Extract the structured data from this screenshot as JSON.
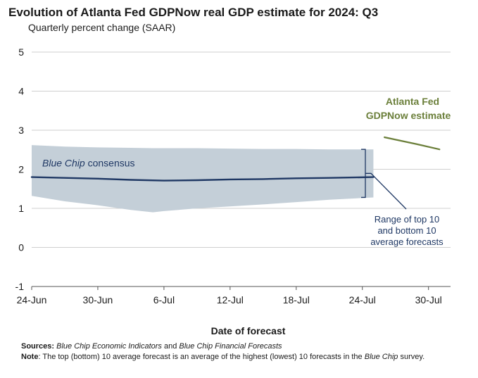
{
  "header": {
    "title": "Evolution of Atlanta Fed GDPNow real GDP estimate for 2024: Q3",
    "subtitle": "Quarterly percent change (SAAR)"
  },
  "chart_data": {
    "type": "line",
    "title": "Evolution of Atlanta Fed GDPNow real GDP estimate for 2024: Q3",
    "subtitle": "Quarterly percent change (SAAR)",
    "xlabel": "Date of forecast",
    "ylabel": "",
    "ylim": [
      -1,
      5
    ],
    "yticks": [
      "-1",
      "0",
      "1",
      "2",
      "3",
      "4",
      "5"
    ],
    "xticks": [
      "24-Jun",
      "30-Jun",
      "6-Jul",
      "12-Jul",
      "18-Jul",
      "24-Jul",
      "30-Jul"
    ],
    "x_dates": [
      "2024-06-24",
      "2024-06-30",
      "2024-07-06",
      "2024-07-12",
      "2024-07-18",
      "2024-07-24",
      "2024-07-30"
    ],
    "xlim": [
      "2024-06-24",
      "2024-08-01"
    ],
    "grid": "horizontal",
    "series": [
      {
        "name": "Blue Chip consensus",
        "color": "#1f3864",
        "x": [
          "2024-06-24",
          "2024-06-27",
          "2024-06-30",
          "2024-07-03",
          "2024-07-06",
          "2024-07-09",
          "2024-07-12",
          "2024-07-15",
          "2024-07-18",
          "2024-07-21",
          "2024-07-25"
        ],
        "y": [
          1.8,
          1.78,
          1.76,
          1.73,
          1.71,
          1.72,
          1.74,
          1.75,
          1.77,
          1.78,
          1.8
        ]
      },
      {
        "name": "Atlanta Fed GDPNow estimate",
        "color": "#6b7f3a",
        "x": [
          "2024-07-26",
          "2024-07-29",
          "2024-07-31"
        ],
        "y": [
          2.82,
          2.64,
          2.51
        ]
      }
    ],
    "band": {
      "name": "Range of top 10 and bottom 10 average forecasts",
      "color": "#c4cfd8",
      "x": [
        "2024-06-24",
        "2024-06-27",
        "2024-06-30",
        "2024-07-03",
        "2024-07-05",
        "2024-07-06",
        "2024-07-09",
        "2024-07-12",
        "2024-07-15",
        "2024-07-18",
        "2024-07-21",
        "2024-07-25"
      ],
      "upper": [
        2.62,
        2.58,
        2.56,
        2.55,
        2.54,
        2.54,
        2.54,
        2.53,
        2.52,
        2.52,
        2.51,
        2.51
      ],
      "lower": [
        1.32,
        1.18,
        1.08,
        0.96,
        0.9,
        0.93,
        1.0,
        1.05,
        1.1,
        1.16,
        1.22,
        1.28
      ]
    },
    "annotations": {
      "consensus_label": "Blue Chip consensus",
      "consensus_label_italic": "Blue Chip",
      "consensus_label_rest": " consensus",
      "gdpnow_label_line1": "Atlanta Fed",
      "gdpnow_label_line2": "GDPNow estimate",
      "range_label_line1": "Range of top 10",
      "range_label_line2": "and bottom 10",
      "range_label_line3": "average forecasts"
    }
  },
  "footer": {
    "sources_label": "Sources:",
    "sources_italic1": "Blue Chip Economic Indicators",
    "sources_and": " and ",
    "sources_italic2": "Blue Chip Financial Forecasts",
    "note_label": "Note",
    "note_text": ": The top (bottom) 10 average forecast is an average of the highest (lowest) 10 forecasts in the ",
    "note_italic": "Blue Chip",
    "note_end": " survey."
  },
  "colors": {
    "band": "#c4cfd8",
    "consensus": "#1f3864",
    "gdpnow": "#6b7f3a",
    "annotation": "#1f3864",
    "grid": "#cfcfcf",
    "axis": "#555555"
  }
}
